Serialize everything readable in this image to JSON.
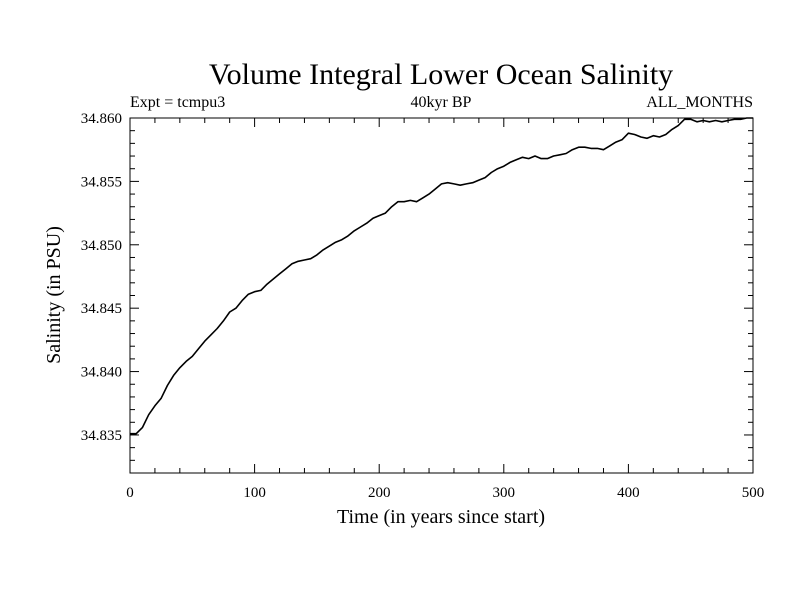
{
  "chart_data": {
    "type": "line",
    "title": "Volume Integral Lower Ocean Salinity",
    "subtitle_left": "Expt = tcmpu3",
    "subtitle_center": "40kyr BP",
    "subtitle_right": "ALL_MONTHS",
    "xlabel": "Time (in years since start)",
    "ylabel": "Salinity (in PSU)",
    "xlim": [
      0,
      500
    ],
    "ylim": [
      34.832,
      34.86
    ],
    "xticks": [
      0,
      100,
      200,
      300,
      400,
      500
    ],
    "xtick_labels": [
      "0",
      "100",
      "200",
      "300",
      "400",
      "500"
    ],
    "yticks": [
      34.835,
      34.84,
      34.845,
      34.85,
      34.855,
      34.86
    ],
    "ytick_labels": [
      "34.835",
      "34.840",
      "34.845",
      "34.850",
      "34.855",
      "34.860"
    ],
    "grid": false,
    "line_color": "#000000",
    "series": [
      {
        "x": [
          0,
          5,
          10,
          15,
          20,
          25,
          30,
          35,
          40,
          45,
          50,
          55,
          60,
          65,
          70,
          75,
          80,
          85,
          90,
          95,
          100,
          105,
          110,
          115,
          120,
          125,
          130,
          135,
          140,
          145,
          150,
          155,
          160,
          165,
          170,
          175,
          180,
          185,
          190,
          195,
          200,
          205,
          210,
          215,
          220,
          225,
          230,
          235,
          240,
          245,
          250,
          255,
          260,
          265,
          270,
          275,
          280,
          285,
          290,
          295,
          300,
          305,
          310,
          315,
          320,
          325,
          330,
          335,
          340,
          345,
          350,
          355,
          360,
          365,
          370,
          375,
          380,
          385,
          390,
          395,
          400,
          405,
          410,
          415,
          420,
          425,
          430,
          435,
          440,
          445,
          450,
          455,
          460,
          465,
          470,
          475,
          480,
          485,
          490,
          495,
          500
        ],
        "values": [
          34.8351,
          34.8351,
          34.8356,
          34.8366,
          34.8373,
          34.8379,
          34.8389,
          34.8397,
          34.8403,
          34.8408,
          34.8412,
          34.8418,
          34.8424,
          34.8429,
          34.8434,
          34.844,
          34.8447,
          34.845,
          34.8456,
          34.8461,
          34.8463,
          34.8464,
          34.8469,
          34.8473,
          34.8477,
          34.8481,
          34.8485,
          34.8487,
          34.8488,
          34.8489,
          34.8492,
          34.8496,
          34.8499,
          34.8502,
          34.8504,
          34.8507,
          34.8511,
          34.8514,
          34.8517,
          34.8521,
          34.8523,
          34.8525,
          34.853,
          34.8534,
          34.8534,
          34.8535,
          34.8534,
          34.8537,
          34.854,
          34.8544,
          34.8548,
          34.8549,
          34.8548,
          34.8547,
          34.8548,
          34.8549,
          34.8551,
          34.8553,
          34.8557,
          34.856,
          34.8562,
          34.8565,
          34.8567,
          34.8569,
          34.8568,
          34.857,
          34.8568,
          34.8568,
          34.857,
          34.8571,
          34.8572,
          34.8575,
          34.8577,
          34.8577,
          34.8576,
          34.8576,
          34.8575,
          34.8578,
          34.8581,
          34.8583,
          34.8588,
          34.8587,
          34.8585,
          34.8584,
          34.8586,
          34.8585,
          34.8587,
          34.8591,
          34.8594,
          34.8599,
          34.8599,
          34.8597,
          34.8598,
          34.8597,
          34.8598,
          34.8597,
          34.8598,
          34.8599,
          34.8599,
          34.86,
          34.86
        ]
      }
    ]
  }
}
